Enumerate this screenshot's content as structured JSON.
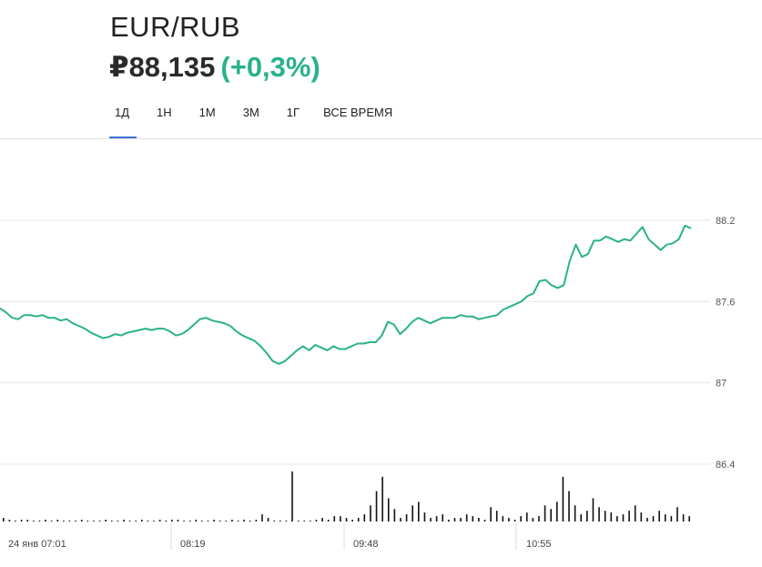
{
  "header": {
    "pair": "EUR/RUB",
    "price": "₽88,135",
    "change": "(+0,3%)"
  },
  "tabs": [
    {
      "label": "1Д",
      "active": true
    },
    {
      "label": "1Н",
      "active": false
    },
    {
      "label": "1М",
      "active": false
    },
    {
      "label": "3М",
      "active": false
    },
    {
      "label": "1Г",
      "active": false
    },
    {
      "label": "ВСЕ ВРЕМЯ",
      "active": false
    }
  ],
  "colors": {
    "line": "#2bb28a",
    "accent": "#3e6fd8",
    "positive": "#2bb28a"
  },
  "chart_data": {
    "type": "line",
    "ylim": [
      86.4,
      88.2
    ],
    "yticks": [
      "88.2",
      "87.6",
      "87",
      "86.4"
    ],
    "xticks": [
      "24 янв 07:01",
      "08:19",
      "09:48",
      "10:55"
    ],
    "grid": true,
    "series": [
      {
        "values": [
          87.55,
          87.52,
          87.48,
          87.47,
          87.5,
          87.5,
          87.49,
          87.5,
          87.48,
          87.48,
          87.46,
          87.47,
          87.44,
          87.42,
          87.4,
          87.37,
          87.35,
          87.33,
          87.34,
          87.36,
          87.35,
          87.37,
          87.38,
          87.39,
          87.4,
          87.39,
          87.4,
          87.4,
          87.38,
          87.35,
          87.36,
          87.39,
          87.43,
          87.47,
          87.48,
          87.46,
          87.45,
          87.44,
          87.42,
          87.38,
          87.35,
          87.33,
          87.31,
          87.27,
          87.22,
          87.16,
          87.14,
          87.16,
          87.2,
          87.24,
          87.27,
          87.24,
          87.28,
          87.26,
          87.24,
          87.27,
          87.25,
          87.25,
          87.27,
          87.29,
          87.29,
          87.3,
          87.3,
          87.35,
          87.45,
          87.43,
          87.36,
          87.4,
          87.45,
          87.48,
          87.46,
          87.44,
          87.46,
          87.48,
          87.48,
          87.48,
          87.5,
          87.49,
          87.49,
          87.47,
          87.48,
          87.49,
          87.5,
          87.54,
          87.56,
          87.58,
          87.6,
          87.64,
          87.66,
          87.75,
          87.76,
          87.72,
          87.7,
          87.72,
          87.9,
          88.02,
          87.93,
          87.95,
          88.05,
          88.05,
          88.08,
          88.06,
          88.04,
          88.06,
          88.05,
          88.1,
          88.15,
          88.06,
          88.02,
          87.98,
          88.02,
          88.03,
          88.06,
          88.16,
          88.14
        ]
      }
    ],
    "volume": [
      2,
      1,
      0,
      1,
      1,
      0,
      0,
      1,
      0,
      1,
      0,
      0,
      0,
      1,
      0,
      0,
      0,
      1,
      0,
      0,
      1,
      0,
      0,
      1,
      0,
      0,
      1,
      0,
      1,
      1,
      0,
      0,
      1,
      0,
      0,
      1,
      0,
      0,
      1,
      0,
      1,
      0,
      1,
      4,
      2,
      0,
      0,
      0,
      28,
      0,
      0,
      0,
      1,
      2,
      1,
      3,
      3,
      2,
      1,
      2,
      4,
      9,
      17,
      25,
      13,
      7,
      2,
      4,
      9,
      11,
      5,
      2,
      3,
      4,
      1,
      2,
      2,
      4,
      3,
      2,
      1,
      8,
      6,
      3,
      2,
      1,
      3,
      5,
      2,
      3,
      9,
      7,
      11,
      25,
      17,
      9,
      4,
      6,
      13,
      8,
      6,
      5,
      3,
      4,
      6,
      9,
      5,
      2,
      3,
      6,
      4,
      3,
      8,
      4,
      3
    ]
  }
}
